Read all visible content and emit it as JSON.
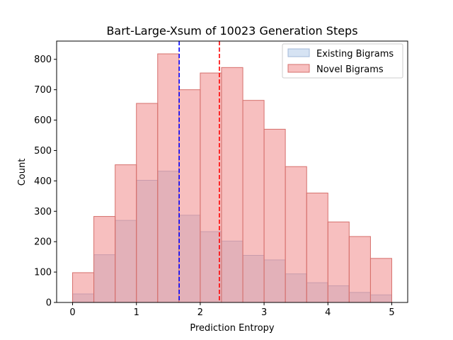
{
  "chart_data": {
    "type": "bar",
    "title": "Bart-Large-Xsum of 10023 Generation Steps",
    "xlabel": "Prediction Entropy",
    "ylabel": "Count",
    "xlim": [
      -0.25,
      5.25
    ],
    "ylim": [
      0,
      860
    ],
    "xticks": [
      0,
      1,
      2,
      3,
      4,
      5
    ],
    "yticks": [
      0,
      100,
      200,
      300,
      400,
      500,
      600,
      700,
      800
    ],
    "bin_edges": [
      0,
      0.333,
      0.667,
      1.0,
      1.333,
      1.667,
      2.0,
      2.333,
      2.667,
      3.0,
      3.333,
      3.667,
      4.0,
      4.333,
      4.667,
      5.0
    ],
    "series": [
      {
        "name": "Existing Bigrams",
        "fill": "#aec7e8",
        "fill_opacity": 0.5,
        "edge": "#a3b8d8",
        "values": [
          28,
          157,
          270,
          402,
          432,
          287,
          233,
          202,
          155,
          140,
          94,
          65,
          55,
          33,
          25
        ]
      },
      {
        "name": "Novel Bigrams",
        "fill": "#f08080",
        "fill_opacity": 0.5,
        "edge": "#d6706c",
        "values": [
          98,
          283,
          453,
          655,
          818,
          700,
          755,
          773,
          665,
          570,
          447,
          360,
          265,
          217,
          145
        ]
      }
    ],
    "vlines": [
      {
        "x": 1.67,
        "color": "#0000ff",
        "style": "dashed"
      },
      {
        "x": 2.3,
        "color": "#ff0000",
        "style": "dashed"
      }
    ],
    "legend": "top-right",
    "grid": false
  }
}
